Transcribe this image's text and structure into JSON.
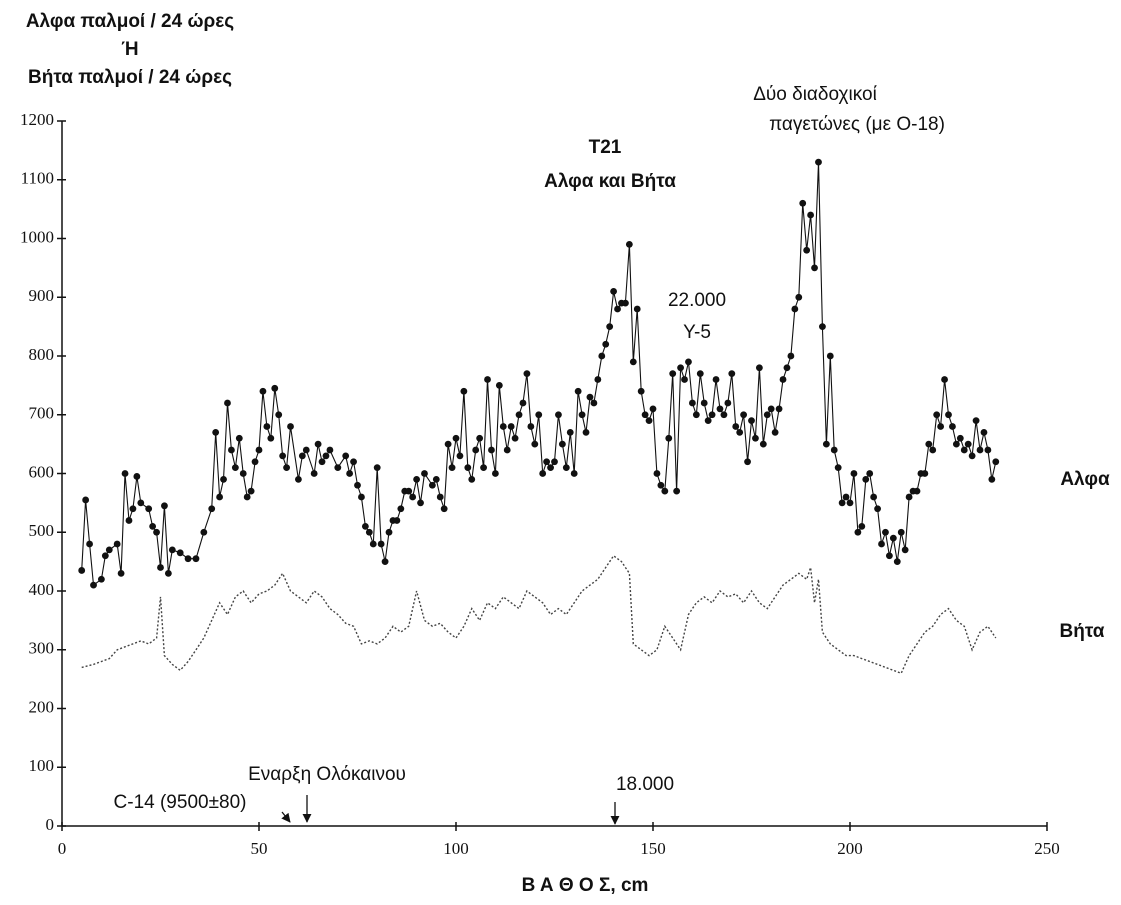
{
  "chart_data": {
    "type": "line",
    "title": "T21",
    "subtitle": "Αλφα και Βήτα",
    "y_label": [
      "Αλφα παλμοί / 24 ώρες",
      "Ή",
      "Βήτα παλμοί / 24 ώρες"
    ],
    "x_label": "Β Α Θ Ο Σ, cm",
    "annotations": [
      "22.000",
      "Y-5",
      "Δύο διαδοχικοί",
      "παγετώνες (με Ο-18)",
      "Εναρξη Ολόκαινου",
      "C-14 (9500±80)",
      "18.000"
    ],
    "xlim": [
      0,
      250
    ],
    "xticks": [
      0,
      50,
      100,
      150,
      200,
      250
    ],
    "ylim": [
      0,
      1200
    ],
    "yticks": [
      0,
      100,
      200,
      300,
      400,
      500,
      600,
      700,
      800,
      900,
      1000,
      1100,
      1200
    ],
    "grid": false,
    "series": [
      {
        "name": "Αλφα",
        "color": "#111111",
        "markers": true,
        "dashed": false,
        "x": [
          5,
          6,
          7,
          8,
          10,
          11,
          12,
          14,
          15,
          16,
          17,
          18,
          19,
          20,
          22,
          23,
          24,
          25,
          26,
          27,
          28,
          30,
          32,
          34,
          36,
          38,
          39,
          40,
          41,
          42,
          43,
          44,
          45,
          46,
          47,
          48,
          49,
          50,
          51,
          52,
          53,
          54,
          55,
          56,
          57,
          58,
          60,
          61,
          62,
          64,
          65,
          66,
          67,
          68,
          70,
          72,
          73,
          74,
          75,
          76,
          77,
          78,
          79,
          80,
          81,
          82,
          83,
          84,
          85,
          86,
          87,
          88,
          89,
          90,
          91,
          92,
          94,
          95,
          96,
          97,
          98,
          99,
          100,
          101,
          102,
          103,
          104,
          105,
          106,
          107,
          108,
          109,
          110,
          111,
          112,
          113,
          114,
          115,
          116,
          117,
          118,
          119,
          120,
          121,
          122,
          123,
          124,
          125,
          126,
          127,
          128,
          129,
          130,
          131,
          132,
          133,
          134,
          135,
          136,
          137,
          138,
          139,
          140,
          141,
          142,
          143,
          144,
          145,
          146,
          147,
          148,
          149,
          150,
          151,
          152,
          153,
          154,
          155,
          156,
          157,
          158,
          159,
          160,
          161,
          162,
          163,
          164,
          165,
          166,
          167,
          168,
          169,
          170,
          171,
          172,
          173,
          174,
          175,
          176,
          177,
          178,
          179,
          180,
          181,
          182,
          183,
          184,
          185,
          186,
          187,
          188,
          189,
          190,
          191,
          192,
          193,
          194,
          195,
          196,
          197,
          198,
          199,
          200,
          201,
          202,
          203,
          204,
          205,
          206,
          207,
          208,
          209,
          210,
          211,
          212,
          213,
          214,
          215,
          216,
          217,
          218,
          219,
          220,
          221,
          222,
          223,
          224,
          225,
          226,
          227,
          228,
          229,
          230,
          231,
          232,
          233,
          234,
          235,
          236,
          237
        ],
        "values": [
          435,
          555,
          480,
          410,
          420,
          460,
          470,
          480,
          430,
          600,
          520,
          540,
          595,
          550,
          540,
          510,
          500,
          440,
          545,
          430,
          470,
          465,
          455,
          455,
          500,
          540,
          670,
          560,
          590,
          720,
          640,
          610,
          660,
          600,
          560,
          570,
          620,
          640,
          740,
          680,
          660,
          745,
          700,
          630,
          610,
          680,
          590,
          630,
          640,
          600,
          650,
          620,
          630,
          640,
          610,
          630,
          600,
          620,
          580,
          560,
          510,
          500,
          480,
          610,
          480,
          450,
          500,
          520,
          520,
          540,
          570,
          570,
          560,
          590,
          550,
          600,
          580,
          590,
          560,
          540,
          650,
          610,
          660,
          630,
          740,
          610,
          590,
          640,
          660,
          610,
          760,
          640,
          600,
          750,
          680,
          640,
          680,
          660,
          700,
          720,
          770,
          680,
          650,
          700,
          600,
          620,
          610,
          620,
          700,
          650,
          610,
          670,
          600,
          740,
          700,
          670,
          730,
          720,
          760,
          800,
          820,
          850,
          910,
          880,
          890,
          890,
          990,
          790,
          880,
          740,
          700,
          690,
          710,
          600,
          580,
          570,
          660,
          770,
          570,
          780,
          760,
          790,
          720,
          700,
          770,
          720,
          690,
          700,
          760,
          710,
          700,
          720,
          770,
          680,
          670,
          700,
          620,
          690,
          660,
          780,
          650,
          700,
          710,
          670,
          710,
          760,
          780,
          800,
          880,
          900,
          1060,
          980,
          1040,
          950,
          1130,
          850,
          650,
          800,
          640,
          610,
          550,
          560,
          550,
          600,
          500,
          510,
          590,
          600,
          560,
          540,
          480,
          500,
          460,
          490,
          450,
          500,
          470,
          560,
          570,
          570,
          600,
          600,
          650,
          640,
          700,
          680,
          760,
          700,
          680,
          650,
          660,
          640,
          650,
          630,
          690,
          640,
          670,
          640,
          590,
          620
        ]
      },
      {
        "name": "Βήτα",
        "color": "#444444",
        "markers": false,
        "dashed": true,
        "x": [
          5,
          8,
          10,
          12,
          14,
          16,
          18,
          20,
          22,
          24,
          25,
          26,
          28,
          30,
          32,
          34,
          36,
          38,
          40,
          42,
          44,
          46,
          48,
          50,
          52,
          54,
          56,
          58,
          60,
          62,
          64,
          66,
          68,
          70,
          72,
          74,
          76,
          78,
          80,
          82,
          84,
          86,
          88,
          90,
          92,
          94,
          96,
          98,
          100,
          102,
          104,
          106,
          108,
          110,
          112,
          114,
          116,
          118,
          120,
          122,
          124,
          126,
          128,
          130,
          132,
          134,
          136,
          138,
          140,
          142,
          144,
          145,
          147,
          149,
          151,
          153,
          155,
          157,
          159,
          161,
          163,
          165,
          167,
          169,
          171,
          173,
          175,
          177,
          179,
          181,
          183,
          185,
          187,
          189,
          190,
          191,
          192,
          193,
          195,
          197,
          199,
          201,
          203,
          205,
          207,
          209,
          211,
          213,
          215,
          217,
          219,
          221,
          223,
          225,
          227,
          229,
          231,
          233,
          235,
          237
        ],
        "values": [
          270,
          275,
          280,
          285,
          300,
          305,
          310,
          315,
          310,
          320,
          390,
          290,
          275,
          265,
          280,
          300,
          320,
          350,
          380,
          360,
          390,
          400,
          380,
          395,
          400,
          410,
          430,
          400,
          390,
          380,
          400,
          390,
          370,
          360,
          345,
          340,
          310,
          315,
          310,
          320,
          340,
          330,
          340,
          400,
          350,
          340,
          345,
          330,
          320,
          340,
          370,
          350,
          380,
          370,
          390,
          380,
          370,
          400,
          390,
          380,
          360,
          370,
          360,
          380,
          400,
          410,
          420,
          440,
          460,
          450,
          430,
          310,
          300,
          290,
          300,
          340,
          320,
          300,
          360,
          380,
          390,
          380,
          400,
          390,
          395,
          380,
          400,
          380,
          370,
          390,
          410,
          420,
          430,
          420,
          440,
          380,
          420,
          330,
          310,
          300,
          290,
          290,
          285,
          280,
          275,
          270,
          265,
          260,
          290,
          310,
          330,
          340,
          360,
          370,
          350,
          340,
          300,
          330,
          340,
          320
        ]
      }
    ]
  }
}
